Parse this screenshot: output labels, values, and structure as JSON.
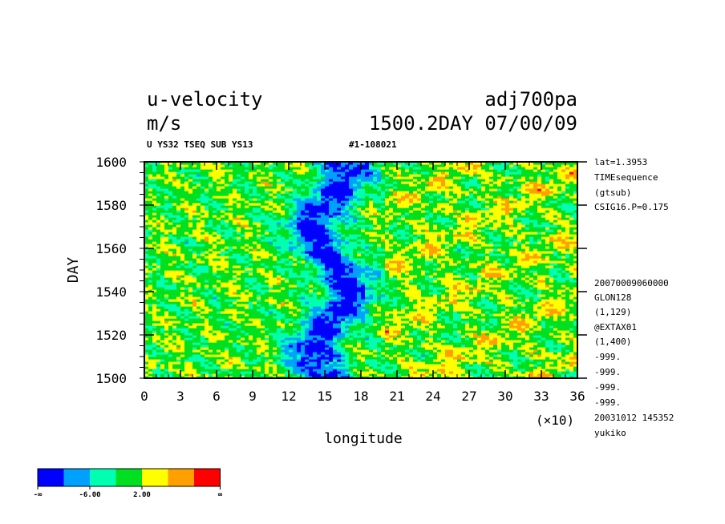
{
  "header": {
    "variable": "u-velocity",
    "units": "m/s",
    "run_name": "adj700pa",
    "time_label": "1500.2DAY 07/00/09",
    "subtitle": "U YS32 TSEQ SUB YS13",
    "id_label": "#1-108021"
  },
  "side_info": [
    "lat=1.3953",
    "TIMEsequence",
    "(gtsub)",
    "CSIG16.P=0.175",
    "20070009060000",
    "GLON128",
    "(1,129)",
    "@EXTAX01",
    "(1,400)",
    "-999.",
    "-999.",
    "-999.",
    "-999.",
    "20031012 145352",
    "yukiko"
  ],
  "colorbar": {
    "colors": [
      "#0000ff",
      "#00a0ff",
      "#00ffb0",
      "#00e020",
      "#ffff00",
      "#ffa000",
      "#ff0000"
    ],
    "labels": [
      "-∞",
      "-6.00",
      "2.00",
      "∞"
    ]
  },
  "chart_data": {
    "type": "heatmap",
    "title": "u-velocity",
    "xlabel": "longitude",
    "ylabel": "DAY",
    "x_multiplier": "(×10)",
    "xlim": [
      0,
      36
    ],
    "ylim": [
      1500,
      1600
    ],
    "x_ticks": [
      "0",
      "3",
      "6",
      "9",
      "12",
      "15",
      "18",
      "21",
      "24",
      "27",
      "30",
      "33",
      "36"
    ],
    "y_ticks": [
      "1500",
      "1520",
      "1540",
      "1560",
      "1580",
      "1600"
    ],
    "color_levels": [
      "-∞",
      "-6.00",
      "2.00",
      "∞"
    ],
    "features": [
      {
        "region": "easterly band (blue)",
        "x_range": [
          12,
          18
        ],
        "y_range": [
          1500,
          1600
        ]
      },
      {
        "region": "westerly maxima (red)",
        "x_range": [
          21,
          36
        ],
        "y_range": [
          1500,
          1600
        ]
      }
    ]
  }
}
